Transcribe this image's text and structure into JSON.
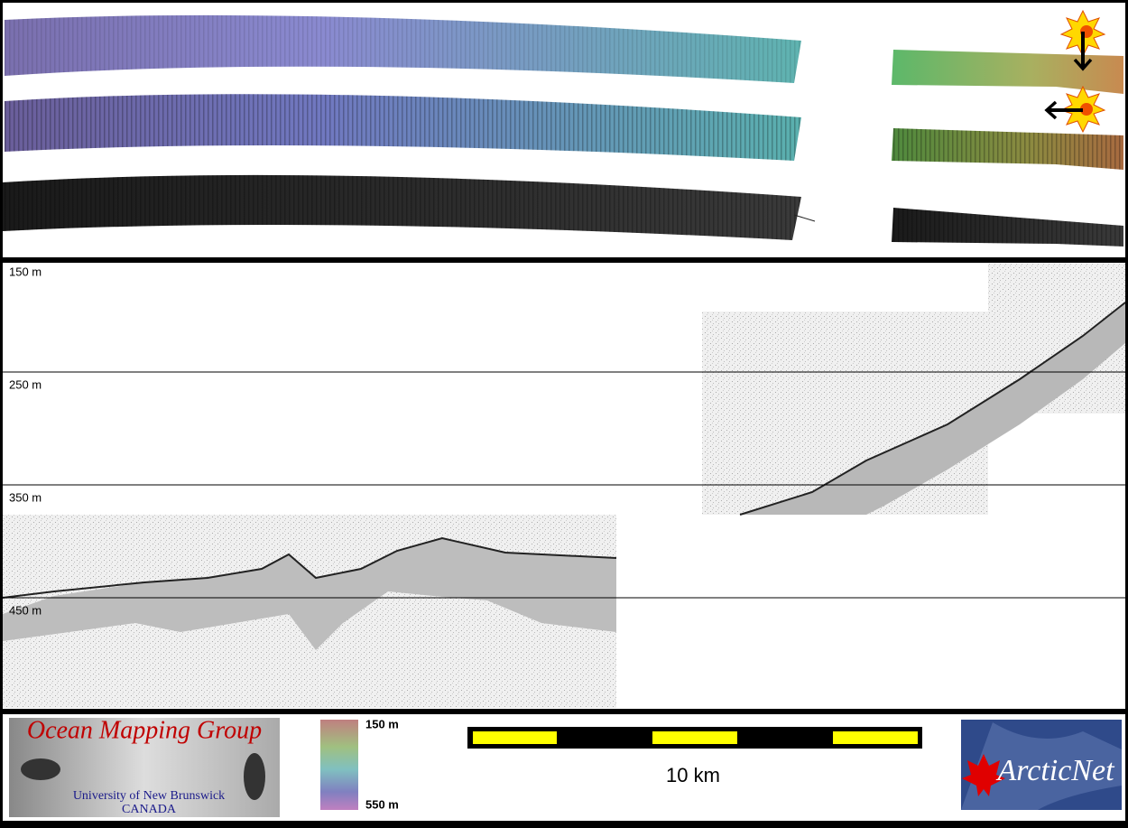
{
  "depth_labels": [
    "150 m",
    "250 m",
    "350 m",
    "450 m"
  ],
  "colorbar": {
    "top": "150 m",
    "bottom": "550 m"
  },
  "scale_bar": "10 km",
  "logos": {
    "omg": {
      "title": "Ocean Mapping Group",
      "university": "University of New Brunswick",
      "country": "CANADA"
    },
    "arcticnet": "ArcticNet"
  }
}
